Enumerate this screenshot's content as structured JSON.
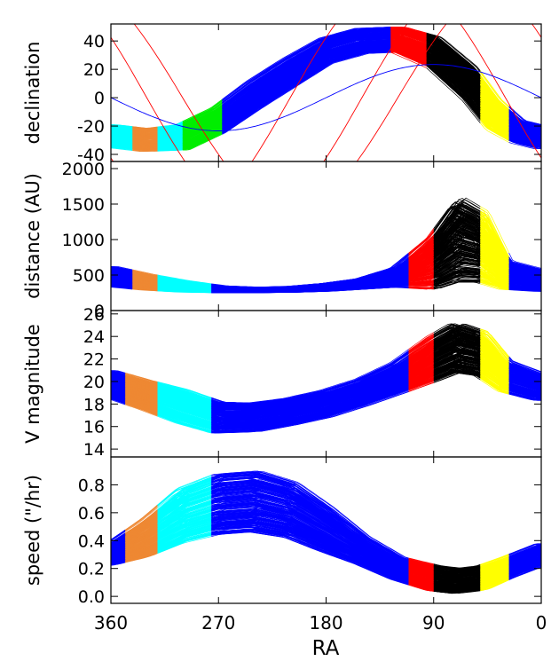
{
  "chart_data": {
    "type": "line",
    "x_label": "RA",
    "x_range": [
      360,
      0
    ],
    "x_ticks": [
      "360",
      "270",
      "180",
      "90",
      "0"
    ],
    "x_tick_values": [
      360,
      270,
      180,
      90,
      0
    ],
    "band_colors": {
      "blue": "#0000ff",
      "black": "#000000",
      "red": "#ff0000",
      "yellow": "#ffff00",
      "green": "#00ee00",
      "cyan": "#00ffff",
      "orange": "#ee8833"
    },
    "panels": [
      {
        "id": "declination",
        "ylabel": "declination",
        "ylim": [
          -45,
          52
        ],
        "yticks": [
          -40,
          -20,
          0,
          20,
          40
        ],
        "ytick_labels": [
          "-40",
          "-20",
          "0",
          "20",
          "40"
        ],
        "curve_count": 300,
        "profile_ra": [
          360,
          330,
          300,
          270,
          240,
          210,
          180,
          150,
          120,
          90,
          60,
          40,
          20,
          0
        ],
        "profile_mean": [
          -27,
          -30,
          -28,
          -16,
          2,
          18,
          33,
          40,
          41,
          32,
          10,
          -12,
          -24,
          -28
        ],
        "profile_spread": [
          8,
          8,
          9,
          9,
          10,
          10,
          9,
          9,
          9,
          11,
          12,
          11,
          8,
          8
        ],
        "color_zones": [
          {
            "ra": [
              360,
              340
            ],
            "color": "cyan"
          },
          {
            "ra": [
              340,
              320
            ],
            "color": "orange"
          },
          {
            "ra": [
              320,
              300
            ],
            "color": "cyan"
          },
          {
            "ra": [
              300,
              265
            ],
            "color": "green"
          },
          {
            "ra": [
              125,
              95
            ],
            "color": "red"
          },
          {
            "ra": [
              95,
              50
            ],
            "color": "black"
          },
          {
            "ra": [
              50,
              25
            ],
            "color": "yellow"
          }
        ],
        "reference_lines": [
          {
            "color": "red",
            "type": "sin",
            "amplitude": 85,
            "phase": 30
          },
          {
            "color": "red",
            "type": "sin",
            "amplitude": 85,
            "phase": 330
          },
          {
            "color": "red",
            "type": "sin",
            "amplitude": 80,
            "phase": 300
          },
          {
            "color": "blue",
            "type": "sin",
            "amplitude": 23.4,
            "phase": 0
          }
        ]
      },
      {
        "id": "distance",
        "ylabel": "distance (AU)",
        "ylim": [
          0,
          2100
        ],
        "yticks": [
          0,
          500,
          1000,
          1500,
          2000
        ],
        "ytick_labels": [
          "0",
          "500",
          "1000",
          "1500",
          "2000"
        ],
        "curve_count": 300,
        "profile_ra": [
          360,
          330,
          300,
          270,
          240,
          210,
          180,
          150,
          120,
          90,
          70,
          50,
          30,
          0
        ],
        "profile_mean": [
          480,
          400,
          340,
          300,
          290,
          300,
          330,
          380,
          480,
          700,
          1000,
          900,
          500,
          420
        ],
        "profile_spread": [
          140,
          110,
          80,
          50,
          40,
          45,
          60,
          80,
          150,
          400,
          600,
          500,
          200,
          150
        ],
        "color_zones": [
          {
            "ra": [
              340,
              320
            ],
            "color": "orange"
          },
          {
            "ra": [
              320,
              275
            ],
            "color": "cyan"
          },
          {
            "ra": [
              110,
              90
            ],
            "color": "red"
          },
          {
            "ra": [
              90,
              50
            ],
            "color": "black"
          },
          {
            "ra": [
              50,
              25
            ],
            "color": "yellow"
          }
        ]
      },
      {
        "id": "vmag",
        "ylabel": "V magnitude",
        "ylim": [
          13.3,
          26.3
        ],
        "yticks": [
          14,
          16,
          18,
          20,
          22,
          24,
          26
        ],
        "ytick_labels": [
          "14",
          "16",
          "18",
          "20",
          "22",
          "24",
          "26"
        ],
        "curve_count": 300,
        "profile_ra": [
          360,
          330,
          300,
          270,
          240,
          210,
          180,
          150,
          120,
          90,
          70,
          50,
          30,
          0
        ],
        "profile_mean": [
          19.8,
          18.8,
          17.8,
          16.8,
          16.8,
          17.3,
          18.0,
          19.0,
          20.3,
          22.0,
          23.0,
          22.5,
          20.5,
          19.5
        ],
        "profile_spread": [
          1.2,
          1.3,
          1.5,
          1.4,
          1.3,
          1.2,
          1.2,
          1.2,
          1.4,
          2.0,
          2.2,
          2.0,
          1.4,
          1.2
        ],
        "color_zones": [
          {
            "ra": [
              345,
              320
            ],
            "color": "orange"
          },
          {
            "ra": [
              320,
              275
            ],
            "color": "cyan"
          },
          {
            "ra": [
              110,
              90
            ],
            "color": "red"
          },
          {
            "ra": [
              90,
              50
            ],
            "color": "black"
          },
          {
            "ra": [
              50,
              25
            ],
            "color": "yellow"
          }
        ]
      },
      {
        "id": "speed",
        "ylabel": "speed (\"/hr)",
        "ylim": [
          -0.05,
          1.0
        ],
        "yticks": [
          0.0,
          0.2,
          0.4,
          0.6,
          0.8
        ],
        "ytick_labels": [
          "0.0",
          "0.2",
          "0.4",
          "0.6",
          "0.8"
        ],
        "curve_count": 300,
        "profile_ra": [
          360,
          330,
          300,
          270,
          240,
          210,
          180,
          150,
          120,
          90,
          70,
          50,
          30,
          0
        ],
        "profile_mean": [
          0.3,
          0.42,
          0.58,
          0.66,
          0.68,
          0.62,
          0.48,
          0.33,
          0.2,
          0.13,
          0.11,
          0.13,
          0.2,
          0.3
        ],
        "profile_spread": [
          0.08,
          0.14,
          0.2,
          0.22,
          0.22,
          0.2,
          0.16,
          0.1,
          0.08,
          0.09,
          0.09,
          0.09,
          0.08,
          0.08
        ],
        "color_zones": [
          {
            "ra": [
              345,
              320
            ],
            "color": "orange"
          },
          {
            "ra": [
              320,
              275
            ],
            "color": "cyan"
          },
          {
            "ra": [
              110,
              90
            ],
            "color": "red"
          },
          {
            "ra": [
              90,
              50
            ],
            "color": "black"
          },
          {
            "ra": [
              50,
              25
            ],
            "color": "yellow"
          }
        ]
      }
    ]
  }
}
